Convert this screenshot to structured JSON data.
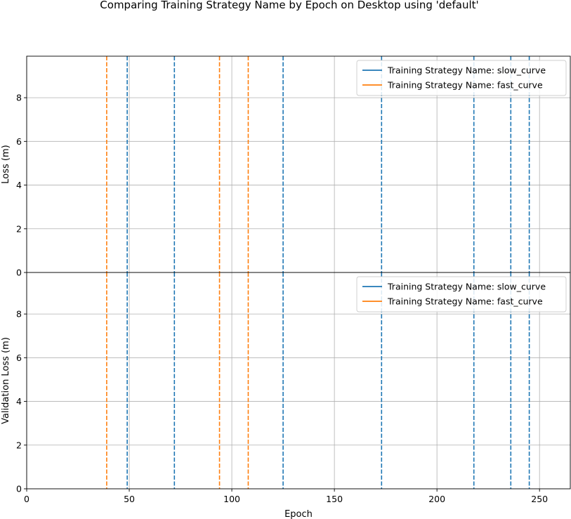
{
  "chart_data": {
    "type": "line",
    "title": "Comparing Training Strategy Name by Epoch on Desktop using 'default'",
    "xlabel": "Epoch",
    "xlim": [
      0,
      265
    ],
    "x_ticks": [
      0,
      50,
      100,
      150,
      200,
      250
    ],
    "grid": true,
    "shared_x": true,
    "series_colors": {
      "slow_curve": "#1f77b4",
      "fast_curve": "#ff7f0e"
    },
    "panels": [
      {
        "ylabel": "Loss (m)",
        "ylim": [
          0,
          9.9
        ],
        "y_ticks": [
          0,
          2,
          4,
          6,
          8
        ],
        "legend_position": "top-right",
        "series": [
          {
            "name": "Training Strategy Name: slow_curve",
            "key": "slow_curve",
            "style": "dashed-vertical",
            "x": [
              49,
              72,
              125,
              173,
              218,
              236,
              245
            ]
          },
          {
            "name": "Training Strategy Name: fast_curve",
            "key": "fast_curve",
            "style": "dashed-vertical",
            "x": [
              39,
              94,
              108
            ]
          }
        ]
      },
      {
        "ylabel": "Validation Loss (m)",
        "ylim": [
          0,
          9.9
        ],
        "y_ticks": [
          0,
          2,
          4,
          6,
          8
        ],
        "legend_position": "top-right",
        "series": [
          {
            "name": "Training Strategy Name: slow_curve",
            "key": "slow_curve",
            "style": "dashed-vertical",
            "x": [
              49,
              72,
              125,
              173,
              218,
              236,
              245
            ]
          },
          {
            "name": "Training Strategy Name: fast_curve",
            "key": "fast_curve",
            "style": "dashed-vertical",
            "x": [
              39,
              94,
              108
            ]
          }
        ]
      }
    ]
  }
}
